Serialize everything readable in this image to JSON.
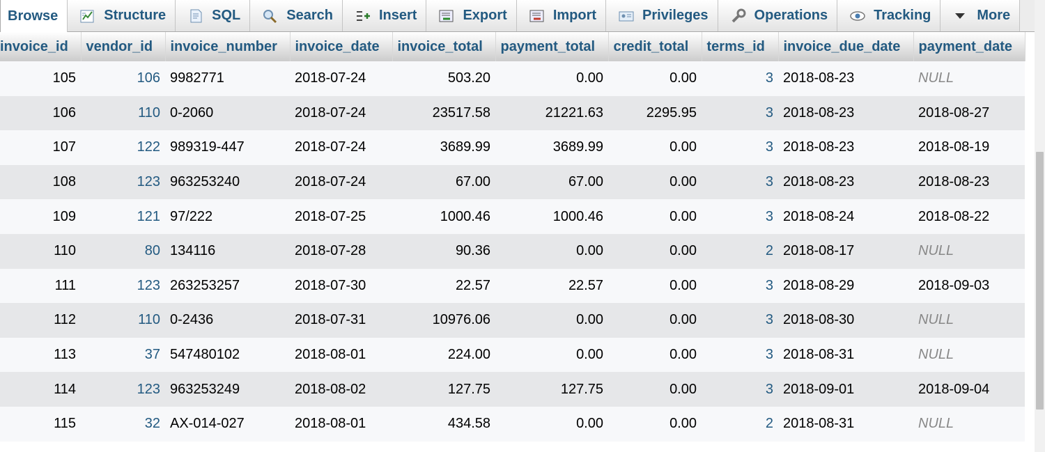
{
  "tabs": [
    {
      "label": "Browse",
      "icon": "browse-icon",
      "active": true
    },
    {
      "label": "Structure",
      "icon": "structure-icon"
    },
    {
      "label": "SQL",
      "icon": "sql-icon"
    },
    {
      "label": "Search",
      "icon": "search-icon"
    },
    {
      "label": "Insert",
      "icon": "insert-icon"
    },
    {
      "label": "Export",
      "icon": "export-icon"
    },
    {
      "label": "Import",
      "icon": "import-icon"
    },
    {
      "label": "Privileges",
      "icon": "privileges-icon"
    },
    {
      "label": "Operations",
      "icon": "operations-icon"
    },
    {
      "label": "Tracking",
      "icon": "tracking-icon"
    },
    {
      "label": "More",
      "icon": "caret-down-icon"
    }
  ],
  "table": {
    "columns": [
      "invoice_id",
      "vendor_id",
      "invoice_number",
      "invoice_date",
      "invoice_total",
      "payment_total",
      "credit_total",
      "terms_id",
      "invoice_due_date",
      "payment_date"
    ],
    "rows": [
      [
        "105",
        "106",
        "9982771",
        "2018-07-24",
        "503.20",
        "0.00",
        "0.00",
        "3",
        "2018-08-23",
        "NULL"
      ],
      [
        "106",
        "110",
        "0-2060",
        "2018-07-24",
        "23517.58",
        "21221.63",
        "2295.95",
        "3",
        "2018-08-23",
        "2018-08-27"
      ],
      [
        "107",
        "122",
        "989319-447",
        "2018-07-24",
        "3689.99",
        "3689.99",
        "0.00",
        "3",
        "2018-08-23",
        "2018-08-19"
      ],
      [
        "108",
        "123",
        "963253240",
        "2018-07-24",
        "67.00",
        "67.00",
        "0.00",
        "3",
        "2018-08-23",
        "2018-08-23"
      ],
      [
        "109",
        "121",
        "97/222",
        "2018-07-25",
        "1000.46",
        "1000.46",
        "0.00",
        "3",
        "2018-08-24",
        "2018-08-22"
      ],
      [
        "110",
        "80",
        "134116",
        "2018-07-28",
        "90.36",
        "0.00",
        "0.00",
        "2",
        "2018-08-17",
        "NULL"
      ],
      [
        "111",
        "123",
        "263253257",
        "2018-07-30",
        "22.57",
        "22.57",
        "0.00",
        "3",
        "2018-08-29",
        "2018-09-03"
      ],
      [
        "112",
        "110",
        "0-2436",
        "2018-07-31",
        "10976.06",
        "0.00",
        "0.00",
        "3",
        "2018-08-30",
        "NULL"
      ],
      [
        "113",
        "37",
        "547480102",
        "2018-08-01",
        "224.00",
        "0.00",
        "0.00",
        "3",
        "2018-08-31",
        "NULL"
      ],
      [
        "114",
        "123",
        "963253249",
        "2018-08-02",
        "127.75",
        "127.75",
        "0.00",
        "3",
        "2018-09-01",
        "2018-09-04"
      ],
      [
        "115",
        "32",
        "AX-014-027",
        "2018-08-01",
        "434.58",
        "0.00",
        "0.00",
        "2",
        "2018-08-31",
        "NULL"
      ]
    ]
  },
  "colors": {
    "link": "#235a81",
    "row_odd": "#f7f8fa",
    "row_even": "#e6e7e9",
    "null_text": "#888888"
  }
}
